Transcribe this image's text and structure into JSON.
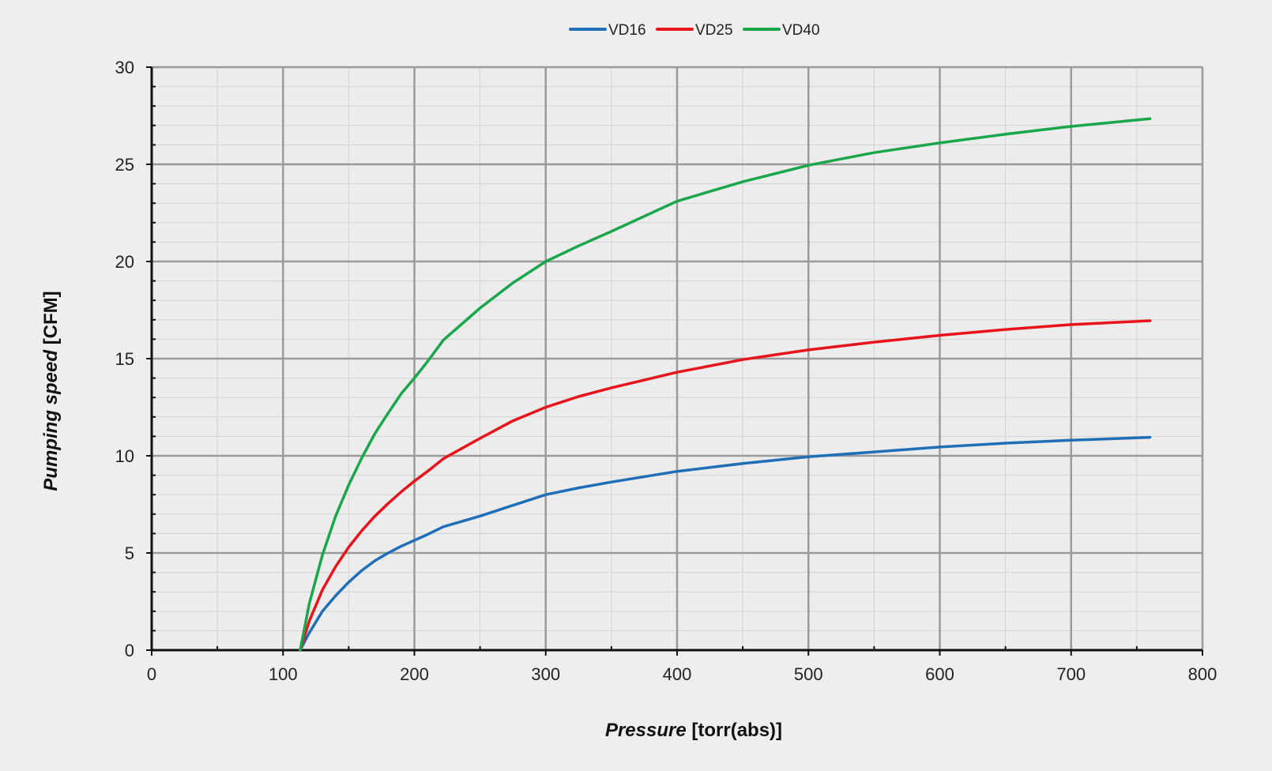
{
  "chart_data": {
    "type": "line",
    "title": "",
    "xlabel": {
      "emphasis": "Pressure",
      "rest": " [torr(abs)]"
    },
    "ylabel": {
      "emphasis": "Pumping speed",
      "rest": " [CFM]"
    },
    "xlim": [
      0,
      800
    ],
    "ylim": [
      0,
      30
    ],
    "xticks": [
      0,
      100,
      200,
      300,
      400,
      500,
      600,
      700,
      800
    ],
    "yticks": [
      0,
      5,
      10,
      15,
      20,
      25,
      30
    ],
    "x_minor_step": 50,
    "y_minor_step": 1,
    "grid": true,
    "legend_position": "top-center",
    "series": [
      {
        "name": "VD16",
        "color": "#1f6fb8",
        "points": [
          [
            113,
            0
          ],
          [
            120,
            0.9
          ],
          [
            130,
            2.0
          ],
          [
            140,
            2.8
          ],
          [
            150,
            3.5
          ],
          [
            160,
            4.1
          ],
          [
            170,
            4.6
          ],
          [
            180,
            5.0
          ],
          [
            190,
            5.35
          ],
          [
            200,
            5.65
          ],
          [
            210,
            5.95
          ],
          [
            222,
            6.35
          ],
          [
            250,
            6.9
          ],
          [
            275,
            7.45
          ],
          [
            300,
            8.0
          ],
          [
            325,
            8.35
          ],
          [
            350,
            8.65
          ],
          [
            400,
            9.2
          ],
          [
            450,
            9.6
          ],
          [
            500,
            9.95
          ],
          [
            550,
            10.2
          ],
          [
            600,
            10.45
          ],
          [
            650,
            10.65
          ],
          [
            700,
            10.8
          ],
          [
            760,
            10.95
          ]
        ]
      },
      {
        "name": "VD25",
        "color": "#e8141b",
        "points": [
          [
            113,
            0
          ],
          [
            120,
            1.5
          ],
          [
            130,
            3.1
          ],
          [
            140,
            4.3
          ],
          [
            150,
            5.3
          ],
          [
            160,
            6.15
          ],
          [
            170,
            6.9
          ],
          [
            180,
            7.55
          ],
          [
            190,
            8.15
          ],
          [
            200,
            8.7
          ],
          [
            210,
            9.2
          ],
          [
            222,
            9.85
          ],
          [
            250,
            10.9
          ],
          [
            275,
            11.8
          ],
          [
            300,
            12.5
          ],
          [
            325,
            13.05
          ],
          [
            350,
            13.5
          ],
          [
            400,
            14.3
          ],
          [
            450,
            14.95
          ],
          [
            500,
            15.45
          ],
          [
            550,
            15.85
          ],
          [
            600,
            16.2
          ],
          [
            650,
            16.5
          ],
          [
            700,
            16.75
          ],
          [
            760,
            16.95
          ]
        ]
      },
      {
        "name": "VD40",
        "color": "#1aa64b",
        "points": [
          [
            113,
            0
          ],
          [
            120,
            2.4
          ],
          [
            130,
            4.9
          ],
          [
            140,
            6.9
          ],
          [
            150,
            8.5
          ],
          [
            160,
            9.9
          ],
          [
            170,
            11.15
          ],
          [
            180,
            12.2
          ],
          [
            190,
            13.2
          ],
          [
            200,
            14.0
          ],
          [
            210,
            14.85
          ],
          [
            222,
            15.95
          ],
          [
            250,
            17.6
          ],
          [
            275,
            18.9
          ],
          [
            300,
            20.0
          ],
          [
            325,
            20.8
          ],
          [
            350,
            21.55
          ],
          [
            400,
            23.1
          ],
          [
            450,
            24.1
          ],
          [
            500,
            24.95
          ],
          [
            550,
            25.6
          ],
          [
            600,
            26.1
          ],
          [
            650,
            26.55
          ],
          [
            700,
            26.95
          ],
          [
            760,
            27.35
          ]
        ]
      }
    ]
  }
}
